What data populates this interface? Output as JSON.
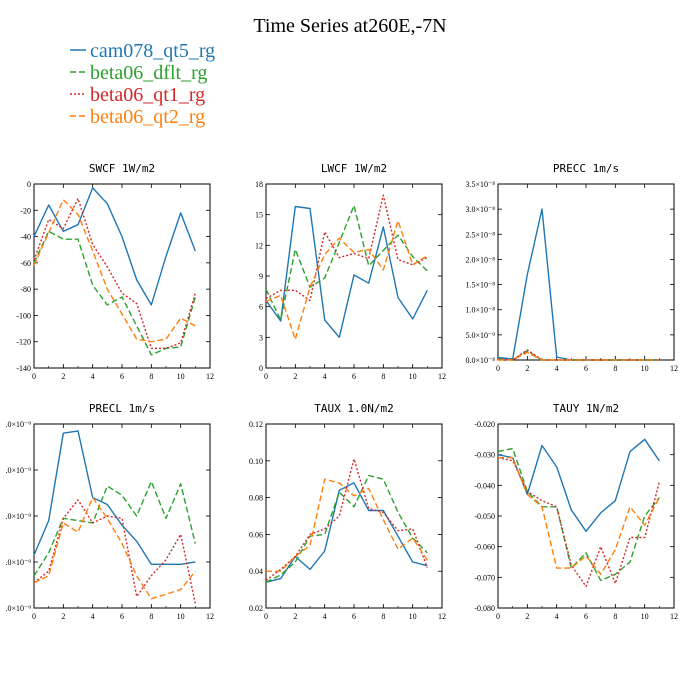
{
  "title": "Time Series at260E,-7N",
  "legend": [
    {
      "label": "cam078_qt5_rg",
      "color": "#1f77b4",
      "dash": "solid"
    },
    {
      "label": "beta06_dflt_rg",
      "color": "#2ca02c",
      "dash": "dash"
    },
    {
      "label": "beta06_qt1_rg",
      "color": "#d62728",
      "dash": "dot"
    },
    {
      "label": "beta06_qt2_rg",
      "color": "#ff7f0e",
      "dash": "dash"
    }
  ],
  "chart_data": [
    {
      "type": "line",
      "title": "SWCF  1W/m2",
      "x": [
        0,
        1,
        2,
        3,
        4,
        5,
        6,
        7,
        8,
        9,
        10,
        11
      ],
      "xlim": [
        0,
        12
      ],
      "xticks": [
        0,
        2,
        4,
        6,
        8,
        10,
        12
      ],
      "xtick_labels": [
        "0",
        "2",
        "4",
        "6",
        "8",
        "10",
        "12"
      ],
      "ylim": [
        -140,
        0
      ],
      "yticks": [
        -140,
        -120,
        -100,
        -80,
        -60,
        -40,
        -20,
        0
      ],
      "ytick_labels": [
        "-140",
        "-120",
        "-100",
        "-80",
        "-60",
        "-40",
        "-20",
        "0"
      ],
      "series": [
        {
          "name": "cam078_qt5_rg",
          "values": [
            -40,
            -16,
            -36,
            -31,
            -3,
            -15,
            -40,
            -73,
            -92,
            -55,
            -22,
            -51
          ]
        },
        {
          "name": "beta06_dflt_rg",
          "values": [
            -60,
            -36,
            -42,
            -42,
            -77,
            -92,
            -86,
            -108,
            -130,
            -125,
            -124,
            -86
          ]
        },
        {
          "name": "beta06_qt1_rg",
          "values": [
            -58,
            -27,
            -34,
            -11,
            -46,
            -63,
            -83,
            -91,
            -125,
            -125,
            -121,
            -83
          ]
        },
        {
          "name": "beta06_qt2_rg",
          "values": [
            -62,
            -37,
            -12,
            -23,
            -51,
            -80,
            -99,
            -118,
            -120,
            -118,
            -102,
            -108
          ]
        }
      ]
    },
    {
      "type": "line",
      "title": "LWCF  1W/m2",
      "x": [
        0,
        1,
        2,
        3,
        4,
        5,
        6,
        7,
        8,
        9,
        10,
        11
      ],
      "xlim": [
        0,
        12
      ],
      "xticks": [
        0,
        2,
        4,
        6,
        8,
        10,
        12
      ],
      "xtick_labels": [
        "0",
        "2",
        "4",
        "6",
        "8",
        "10",
        "12"
      ],
      "ylim": [
        0,
        18
      ],
      "yticks": [
        0,
        3,
        6,
        9,
        12,
        15,
        18
      ],
      "ytick_labels": [
        "0",
        "3",
        "6",
        "9",
        "12",
        "15",
        "18"
      ],
      "series": [
        {
          "name": "cam078_qt5_rg",
          "values": [
            6.6,
            4.6,
            15.8,
            15.6,
            4.7,
            3.0,
            9.1,
            8.3,
            13.8,
            6.9,
            4.8,
            7.6
          ]
        },
        {
          "name": "beta06_dflt_rg",
          "values": [
            7.7,
            4.7,
            11.6,
            7.9,
            8.8,
            12.3,
            15.9,
            10.0,
            11.5,
            13.0,
            10.9,
            9.5
          ]
        },
        {
          "name": "beta06_qt1_rg",
          "values": [
            6.8,
            7.6,
            7.6,
            6.6,
            13.3,
            10.8,
            11.2,
            10.7,
            16.9,
            10.6,
            10.1,
            10.8
          ]
        },
        {
          "name": "beta06_qt2_rg",
          "values": [
            6.5,
            7.1,
            2.8,
            7.9,
            11.1,
            12.7,
            11.3,
            11.6,
            9.6,
            14.4,
            10.1,
            11.0
          ]
        }
      ]
    },
    {
      "type": "line",
      "title": "PRECC  1m/s",
      "x": [
        0,
        1,
        2,
        3,
        4,
        5,
        6,
        7,
        8,
        9,
        10,
        11
      ],
      "xlim": [
        0,
        12
      ],
      "xticks": [
        0,
        2,
        4,
        6,
        8,
        10,
        12
      ],
      "xtick_labels": [
        "0",
        "2",
        "4",
        "6",
        "8",
        "10",
        "12"
      ],
      "ylim": [
        0,
        3.5e-08
      ],
      "yticks": [
        0,
        5e-09,
        1e-08,
        1.5e-08,
        2e-08,
        2.5e-08,
        3e-08,
        3.5e-08
      ],
      "ytick_labels": [
        "0.0×10⁻⁸",
        "5.0×10⁻⁹",
        "1.0×10⁻⁸",
        "1.5×10⁻⁸",
        "2.0×10⁻⁸",
        "2.5×10⁻⁸",
        "3.0×10⁻⁸",
        "3.5×10⁻⁸"
      ],
      "series": [
        {
          "name": "cam078_qt5_rg",
          "values": [
            5e-10,
            2e-10,
            1.7e-08,
            3e-08,
            6e-10,
            0,
            0,
            0,
            0,
            0,
            0,
            0
          ]
        },
        {
          "name": "beta06_dflt_rg",
          "values": [
            2e-10,
            0,
            1.8e-09,
            0,
            0,
            0,
            0,
            0,
            0,
            0,
            0,
            0
          ]
        },
        {
          "name": "beta06_qt1_rg",
          "values": [
            2e-10,
            0,
            2e-09,
            0,
            0,
            0,
            0,
            0,
            0,
            0,
            0,
            0
          ]
        },
        {
          "name": "beta06_qt2_rg",
          "values": [
            0,
            0,
            1.5e-09,
            0,
            0,
            0,
            0,
            0,
            0,
            0,
            0,
            0
          ]
        }
      ]
    },
    {
      "type": "line",
      "title": "PRECL  1m/s",
      "x": [
        0,
        1,
        2,
        3,
        4,
        5,
        6,
        7,
        8,
        9,
        10,
        11
      ],
      "xlim": [
        0,
        12
      ],
      "xticks": [
        0,
        2,
        4,
        6,
        8,
        10,
        12
      ],
      "xtick_labels": [
        "0",
        "2",
        "4",
        "6",
        "8",
        "10",
        "12"
      ],
      "ylim": [
        1e-09,
        9e-09
      ],
      "yticks": [
        1e-09,
        3e-09,
        5e-09,
        7e-09,
        9e-09
      ],
      "ytick_labels": [
        ".0×10⁻⁹",
        ".0×10⁻⁹",
        ".0×10⁻⁹",
        ".0×10⁻⁹",
        ".0×10⁻⁹"
      ],
      "series": [
        {
          "name": "cam078_qt5_rg",
          "values": [
            3.3e-09,
            4.8e-09,
            8.6e-09,
            8.7e-09,
            5.8e-09,
            5.5e-09,
            4.6e-09,
            3.9e-09,
            2.9e-09,
            2.9e-09,
            2.9e-09,
            3e-09
          ]
        },
        {
          "name": "beta06_dflt_rg",
          "values": [
            2.4e-09,
            3.4e-09,
            4.9e-09,
            4.8e-09,
            4.7e-09,
            6.3e-09,
            5.9e-09,
            5e-09,
            6.5e-09,
            4.9e-09,
            6.4e-09,
            3.8e-09
          ]
        },
        {
          "name": "beta06_qt1_rg",
          "values": [
            2.1e-09,
            2.6e-09,
            4.9e-09,
            5.7e-09,
            4.7e-09,
            5e-09,
            4.9e-09,
            1.5e-09,
            2.4e-09,
            3.1e-09,
            4.2e-09,
            1.2e-09
          ]
        },
        {
          "name": "beta06_qt2_rg",
          "values": [
            2.1e-09,
            2.4e-09,
            4.7e-09,
            4.3e-09,
            5.8e-09,
            4.9e-09,
            3.8e-09,
            2.4e-09,
            1.4e-09,
            1.6e-09,
            1.8e-09,
            2.6e-09
          ]
        }
      ]
    },
    {
      "type": "line",
      "title": "TAUX  1.0N/m2",
      "x": [
        0,
        1,
        2,
        3,
        4,
        5,
        6,
        7,
        8,
        9,
        10,
        11
      ],
      "xlim": [
        0,
        12
      ],
      "xticks": [
        0,
        2,
        4,
        6,
        8,
        10,
        12
      ],
      "xtick_labels": [
        "0",
        "2",
        "4",
        "6",
        "8",
        "10",
        "12"
      ],
      "ylim": [
        0.02,
        0.12
      ],
      "yticks": [
        0.02,
        0.04,
        0.06,
        0.08,
        0.1,
        0.12
      ],
      "ytick_labels": [
        "0.02",
        "0.04",
        "0.06",
        "0.08",
        "0.10",
        "0.12"
      ],
      "series": [
        {
          "name": "cam078_qt5_rg",
          "values": [
            0.034,
            0.036,
            0.048,
            0.041,
            0.051,
            0.084,
            0.088,
            0.073,
            0.073,
            0.059,
            0.045,
            0.043
          ]
        },
        {
          "name": "beta06_dflt_rg",
          "values": [
            0.034,
            0.038,
            0.045,
            0.059,
            0.06,
            0.083,
            0.075,
            0.092,
            0.09,
            0.072,
            0.058,
            0.05
          ]
        },
        {
          "name": "beta06_qt1_rg",
          "values": [
            0.035,
            0.041,
            0.048,
            0.06,
            0.063,
            0.07,
            0.101,
            0.074,
            0.072,
            0.062,
            0.063,
            0.042
          ]
        },
        {
          "name": "beta06_qt2_rg",
          "values": [
            0.04,
            0.04,
            0.048,
            0.054,
            0.09,
            0.088,
            0.081,
            0.085,
            0.068,
            0.052,
            0.058,
            0.046
          ]
        }
      ]
    },
    {
      "type": "line",
      "title": "TAUY  1N/m2",
      "x": [
        0,
        1,
        2,
        3,
        4,
        5,
        6,
        7,
        8,
        9,
        10,
        11
      ],
      "xlim": [
        0,
        12
      ],
      "xticks": [
        0,
        2,
        4,
        6,
        8,
        10,
        12
      ],
      "xtick_labels": [
        "0",
        "2",
        "4",
        "6",
        "8",
        "10",
        "12"
      ],
      "ylim": [
        -0.08,
        -0.02
      ],
      "yticks": [
        -0.08,
        -0.07,
        -0.06,
        -0.05,
        -0.04,
        -0.03,
        -0.02
      ],
      "ytick_labels": [
        "-0.080",
        "-0.070",
        "-0.060",
        "-0.050",
        "-0.040",
        "-0.030",
        "-0.020"
      ],
      "series": [
        {
          "name": "cam078_qt5_rg",
          "values": [
            -0.03,
            -0.031,
            -0.043,
            -0.027,
            -0.034,
            -0.048,
            -0.055,
            -0.049,
            -0.045,
            -0.029,
            -0.025,
            -0.032
          ]
        },
        {
          "name": "beta06_dflt_rg",
          "values": [
            -0.029,
            -0.028,
            -0.042,
            -0.047,
            -0.047,
            -0.067,
            -0.062,
            -0.071,
            -0.069,
            -0.065,
            -0.05,
            -0.044
          ]
        },
        {
          "name": "beta06_qt1_rg",
          "values": [
            -0.031,
            -0.032,
            -0.042,
            -0.045,
            -0.047,
            -0.066,
            -0.073,
            -0.06,
            -0.072,
            -0.057,
            -0.057,
            -0.039
          ]
        },
        {
          "name": "beta06_qt2_rg",
          "values": [
            -0.031,
            -0.031,
            -0.043,
            -0.047,
            -0.067,
            -0.067,
            -0.063,
            -0.069,
            -0.061,
            -0.047,
            -0.053,
            -0.044
          ]
        }
      ]
    }
  ]
}
